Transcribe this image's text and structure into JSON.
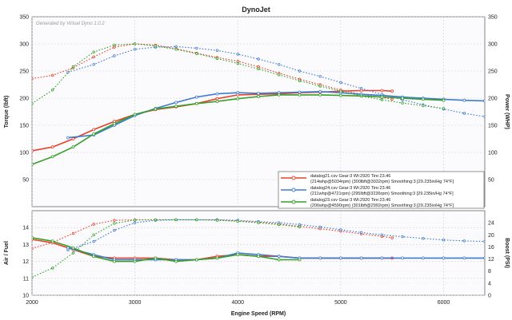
{
  "colors": {
    "red": "#e8402a",
    "blue": "#3f7bd0",
    "green": "#36a02a",
    "grid": "#cfcfcf",
    "panel": "#fbfbfd"
  },
  "chart_data": {
    "type": "line",
    "title": "DynoJet",
    "watermark": "Generated by Virtual Dyno 1.0.2",
    "xlabel": "Engine Speed (RPM)",
    "xlim": [
      2000,
      6400
    ],
    "xticks": [
      2000,
      3000,
      4000,
      5000,
      6000
    ],
    "top": {
      "ylabel_left": "Torque (lbft)",
      "ylabel_right": "Power (WHP)",
      "ylim": [
        0,
        350
      ],
      "yticks": [
        50,
        100,
        150,
        200,
        250,
        300,
        350
      ],
      "series": [
        {
          "name": "datalog21 power",
          "color_key": "red",
          "dashed": false,
          "x": [
            2000,
            2200,
            2400,
            2600,
            2800,
            3000,
            3200,
            3400,
            3600,
            3800,
            4000,
            4200,
            4400,
            4600,
            4800,
            5000,
            5200,
            5400,
            5500
          ],
          "values": [
            103,
            110,
            125,
            142,
            157,
            170,
            179,
            184,
            190,
            199,
            206,
            207,
            208,
            210,
            211,
            213,
            214,
            214,
            213
          ]
        },
        {
          "name": "datalog21 torque",
          "color_key": "red",
          "dashed": true,
          "x": [
            2000,
            2200,
            2400,
            2600,
            2800,
            3000,
            3200,
            3400,
            3600,
            3800,
            4000,
            4200,
            4400,
            4600,
            4800,
            5000,
            5200,
            5400,
            5500
          ],
          "values": [
            236,
            242,
            256,
            276,
            294,
            300,
            298,
            291,
            283,
            275,
            268,
            258,
            246,
            235,
            225,
            215,
            207,
            201,
            198
          ]
        },
        {
          "name": "datalog24 power",
          "color_key": "blue",
          "dashed": false,
          "x": [
            2350,
            2600,
            2800,
            3000,
            3200,
            3400,
            3600,
            3800,
            4000,
            4200,
            4400,
            4600,
            4800,
            5000,
            5200,
            5400,
            5600,
            5800,
            6000,
            6200,
            6400
          ],
          "values": [
            127,
            132,
            150,
            168,
            181,
            192,
            202,
            208,
            210,
            209,
            210,
            211,
            212,
            210,
            207,
            205,
            202,
            200,
            198,
            196,
            195
          ]
        },
        {
          "name": "datalog24 torque",
          "color_key": "blue",
          "dashed": true,
          "x": [
            2350,
            2600,
            2800,
            3000,
            3200,
            3400,
            3600,
            3800,
            4000,
            4200,
            4400,
            4600,
            4800,
            5000,
            5200,
            5400,
            5600,
            5800,
            6000,
            6200,
            6400
          ],
          "values": [
            248,
            262,
            278,
            290,
            294,
            295,
            292,
            288,
            281,
            272,
            262,
            250,
            240,
            229,
            218,
            207,
            197,
            188,
            180,
            172,
            166
          ]
        },
        {
          "name": "datalog23 power",
          "color_key": "green",
          "dashed": false,
          "x": [
            2000,
            2200,
            2400,
            2600,
            2800,
            3000,
            3200,
            3400,
            3600,
            3800,
            4000,
            4200,
            4400,
            4600,
            4800,
            5000,
            5200,
            5400,
            5600,
            5800,
            6000
          ],
          "values": [
            78,
            92,
            110,
            134,
            153,
            170,
            180,
            185,
            190,
            194,
            199,
            203,
            206,
            206,
            206,
            205,
            204,
            202,
            200,
            198,
            196
          ]
        },
        {
          "name": "datalog23 torque",
          "color_key": "green",
          "dashed": true,
          "x": [
            2000,
            2200,
            2400,
            2600,
            2800,
            3000,
            3200,
            3400,
            3600,
            3800,
            4000,
            4200,
            4400,
            4600,
            4800,
            5000,
            5200,
            5400,
            5600,
            5800,
            6000
          ],
          "values": [
            190,
            215,
            258,
            285,
            298,
            300,
            296,
            290,
            282,
            273,
            264,
            254,
            243,
            232,
            222,
            213,
            204,
            197,
            191,
            186,
            181
          ]
        }
      ],
      "legend": [
        {
          "color_key": "red",
          "line1": "datalog21.csv Gear:3 Wt:2920 Tire:23.46",
          "line2": "(214whp@5034rpm) (300lbft@3032rpm) Smoothing:3 [29.235in/Hg 74°F]"
        },
        {
          "color_key": "blue",
          "line1": "datalog24.csv Gear:3 Wt:2920 Tire:23.46",
          "line2": "(211whp@4721rpm) (295lbft@3236rpm) Smoothing:3 [29.235in/Hg 74°F]"
        },
        {
          "color_key": "green",
          "line1": "datalog23.csv Gear:3 Wt:2920 Tire:23.46",
          "line2": "(206whp@4590rpm) (301lbft@2992rpm) Smoothing:3 [29.235in/Hg 74°F]"
        }
      ]
    },
    "bottom": {
      "ylabel_left": "Air / Fuel",
      "ylabel_right": "Boost (PSI)",
      "ylim_left": [
        10,
        15
      ],
      "yticks_left": [
        10,
        11,
        12,
        13,
        14
      ],
      "ylim_right": [
        0,
        28
      ],
      "yticks_right": [
        0,
        4,
        8,
        12,
        16,
        20,
        24
      ],
      "afr_series": [
        {
          "name": "datalog21 AFR",
          "color_key": "red",
          "x": [
            2000,
            2200,
            2400,
            2600,
            2800,
            3000,
            3200,
            3400,
            3600,
            3800,
            4000,
            4200,
            4400,
            4600,
            4800,
            5000,
            5200,
            5400,
            5500
          ],
          "values": [
            13.3,
            13.1,
            12.7,
            12.3,
            12.2,
            12.2,
            12.2,
            12.1,
            12.1,
            12.3,
            12.4,
            12.3,
            12.3,
            12.2,
            12.2,
            12.2,
            12.2,
            12.2,
            12.2
          ]
        },
        {
          "name": "datalog24 AFR",
          "color_key": "blue",
          "x": [
            2350,
            2600,
            2800,
            3000,
            3200,
            3400,
            3600,
            3800,
            4000,
            4200,
            4400,
            4600,
            4800,
            5000,
            5200,
            5400,
            5600,
            5800,
            6000,
            6200,
            6400
          ],
          "values": [
            12.8,
            12.4,
            12.1,
            12.1,
            12.1,
            12.1,
            12.1,
            12.2,
            12.5,
            12.4,
            12.3,
            12.2,
            12.2,
            12.2,
            12.2,
            12.2,
            12.2,
            12.2,
            12.2,
            12.2,
            12.2
          ]
        },
        {
          "name": "datalog23 AFR",
          "color_key": "green",
          "x": [
            2000,
            2200,
            2400,
            2600,
            2800,
            3000,
            3200,
            3400,
            3600,
            3800,
            4000,
            4200,
            4400,
            4600
          ],
          "values": [
            13.4,
            13.2,
            12.8,
            12.3,
            12.0,
            12.0,
            12.2,
            12.0,
            12.1,
            12.2,
            12.4,
            12.3,
            12.1,
            12.1
          ]
        }
      ],
      "boost_series": [
        {
          "name": "datalog21 boost",
          "color_key": "red",
          "x": [
            2000,
            2200,
            2400,
            2600,
            2800,
            3000,
            3200,
            3400,
            3600,
            3800,
            4000,
            4200,
            4400,
            4600,
            4800,
            5000,
            5200,
            5400,
            5500
          ],
          "values": [
            15.5,
            17.5,
            20.5,
            23.5,
            24.8,
            25.0,
            25.0,
            25.0,
            25.0,
            25.0,
            24.6,
            24.2,
            23.6,
            22.8,
            22.0,
            21.2,
            20.3,
            19.5,
            19.0
          ]
        },
        {
          "name": "datalog24 boost",
          "color_key": "blue",
          "x": [
            2350,
            2600,
            2800,
            3000,
            3200,
            3400,
            3600,
            3800,
            4000,
            4200,
            4400,
            4600,
            4800,
            5000,
            5200,
            5400,
            5600,
            5800,
            6000,
            6200,
            6400
          ],
          "values": [
            15.0,
            17.8,
            21.5,
            24.0,
            24.8,
            25.0,
            25.0,
            25.0,
            24.8,
            24.4,
            24.0,
            23.4,
            22.6,
            21.7,
            20.8,
            20.0,
            19.4,
            18.8,
            18.3,
            18.0,
            17.8
          ]
        },
        {
          "name": "datalog23 boost",
          "color_key": "green",
          "x": [
            2000,
            2200,
            2400,
            2600,
            2800,
            3000,
            3200,
            3400,
            3600,
            3800,
            4000,
            4200,
            4400,
            4600
          ],
          "values": [
            6.0,
            9.0,
            14.0,
            20.0,
            23.8,
            24.9,
            25.0,
            25.0,
            25.0,
            24.8,
            24.5,
            24.0,
            23.4,
            22.6
          ]
        }
      ]
    }
  }
}
